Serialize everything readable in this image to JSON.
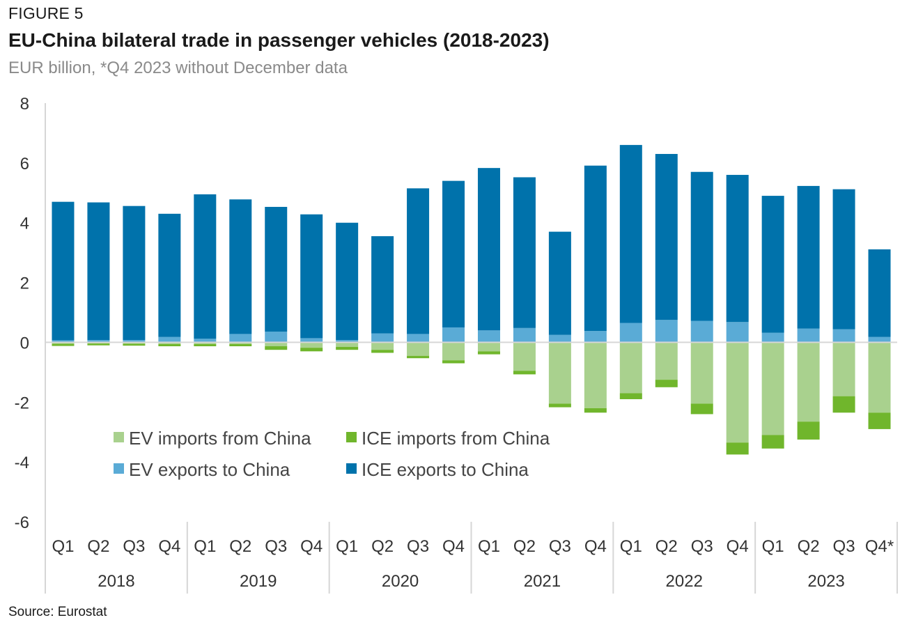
{
  "figure_label": "FIGURE 5",
  "title": "EU-China bilateral trade in passenger vehicles (2018-2023)",
  "subtitle": "EUR billion, *Q4 2023 without December data",
  "source": "Source: Eurostat",
  "chart_data": {
    "type": "bar",
    "stacked": true,
    "ylim": [
      -6,
      8
    ],
    "yticks": [
      -6,
      -4,
      -2,
      0,
      2,
      4,
      6,
      8
    ],
    "grid": false,
    "legend_position": "inside-lower-left",
    "categories": [
      "Q1",
      "Q2",
      "Q3",
      "Q4",
      "Q1",
      "Q2",
      "Q3",
      "Q4",
      "Q1",
      "Q2",
      "Q3",
      "Q4",
      "Q1",
      "Q2",
      "Q3",
      "Q4",
      "Q1",
      "Q2",
      "Q3",
      "Q4",
      "Q1",
      "Q2",
      "Q3",
      "Q4*"
    ],
    "groups": [
      {
        "label": "2018",
        "count": 4
      },
      {
        "label": "2019",
        "count": 4
      },
      {
        "label": "2020",
        "count": 4
      },
      {
        "label": "2021",
        "count": 4
      },
      {
        "label": "2022",
        "count": 4
      },
      {
        "label": "2023",
        "count": 4
      }
    ],
    "legend_order": [
      0,
      1,
      2,
      3
    ],
    "series": [
      {
        "name": "EV imports from China",
        "color": "#a9d18e",
        "stack": "negative",
        "values": [
          -0.05,
          -0.04,
          -0.05,
          -0.06,
          -0.06,
          -0.06,
          -0.13,
          -0.18,
          -0.15,
          -0.25,
          -0.45,
          -0.6,
          -0.3,
          -0.95,
          -2.05,
          -2.2,
          -1.7,
          -1.25,
          -2.05,
          -3.35,
          -3.1,
          -2.65,
          -1.8,
          -2.35
        ]
      },
      {
        "name": "ICE imports from China",
        "color": "#70b62c",
        "stack": "negative",
        "values": [
          -0.07,
          -0.06,
          -0.06,
          -0.07,
          -0.07,
          -0.07,
          -0.12,
          -0.12,
          -0.1,
          -0.1,
          -0.08,
          -0.1,
          -0.1,
          -0.12,
          -0.12,
          -0.15,
          -0.2,
          -0.25,
          -0.35,
          -0.4,
          -0.45,
          -0.6,
          -0.55,
          -0.55
        ]
      },
      {
        "name": "EV exports to China",
        "color": "#5aabd6",
        "stack": "positive",
        "values": [
          0.07,
          0.08,
          0.08,
          0.18,
          0.12,
          0.28,
          0.36,
          0.14,
          0.08,
          0.3,
          0.28,
          0.5,
          0.4,
          0.48,
          0.25,
          0.38,
          0.65,
          0.75,
          0.72,
          0.68,
          0.32,
          0.46,
          0.44,
          0.18
        ]
      },
      {
        "name": "ICE exports to China",
        "color": "#0072ab",
        "stack": "positive",
        "values": [
          4.63,
          4.6,
          4.48,
          4.12,
          4.83,
          4.5,
          4.17,
          4.14,
          3.92,
          3.25,
          4.87,
          4.9,
          5.43,
          5.04,
          3.45,
          5.53,
          5.95,
          5.55,
          4.98,
          4.92,
          4.58,
          4.77,
          4.68,
          2.93
        ]
      }
    ]
  }
}
